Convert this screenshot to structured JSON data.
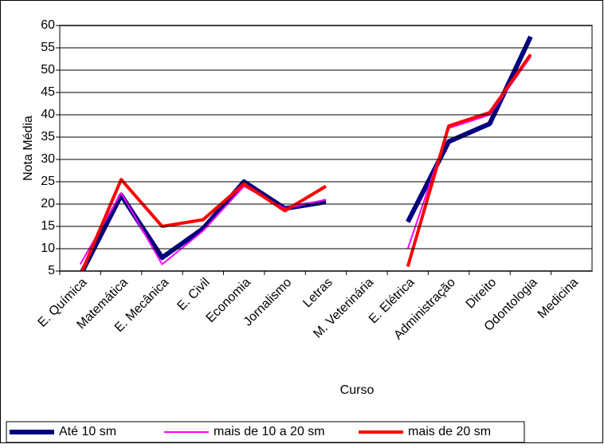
{
  "chart_data": {
    "type": "line",
    "y_label": "Nota Média",
    "x_label": "Curso",
    "categories": [
      "E. Química",
      "Matemática",
      "E. Mecânica",
      "E. Civil",
      "Economia",
      "Jornalismo",
      "Letras",
      "M. Veterinária",
      "E. Elétrica",
      "Administração",
      "Direito",
      "Odontologia",
      "Medicina"
    ],
    "series": [
      {
        "name": "Até 10 sm",
        "color": "#000080",
        "values": [
          4,
          22,
          8,
          14.5,
          25,
          19,
          20.5,
          null,
          16,
          34,
          38,
          57.5,
          null
        ]
      },
      {
        "name": "mais de 10 a 20 sm",
        "color": "#ff00ff",
        "values": [
          6.5,
          22.5,
          6.5,
          14,
          24,
          19,
          21,
          null,
          10,
          37,
          40,
          53,
          null
        ]
      },
      {
        "name": "mais de 20 sm",
        "color": "#ff0000",
        "values": [
          4,
          25.5,
          15,
          16.5,
          24.5,
          18.5,
          24,
          null,
          6,
          37.5,
          40.5,
          53.5,
          null
        ]
      }
    ],
    "ylim": [
      5,
      60
    ],
    "yticks": [
      5,
      10,
      15,
      20,
      25,
      30,
      35,
      40,
      45,
      50,
      55,
      60
    ],
    "grid": true,
    "legend": "bottom-left"
  }
}
